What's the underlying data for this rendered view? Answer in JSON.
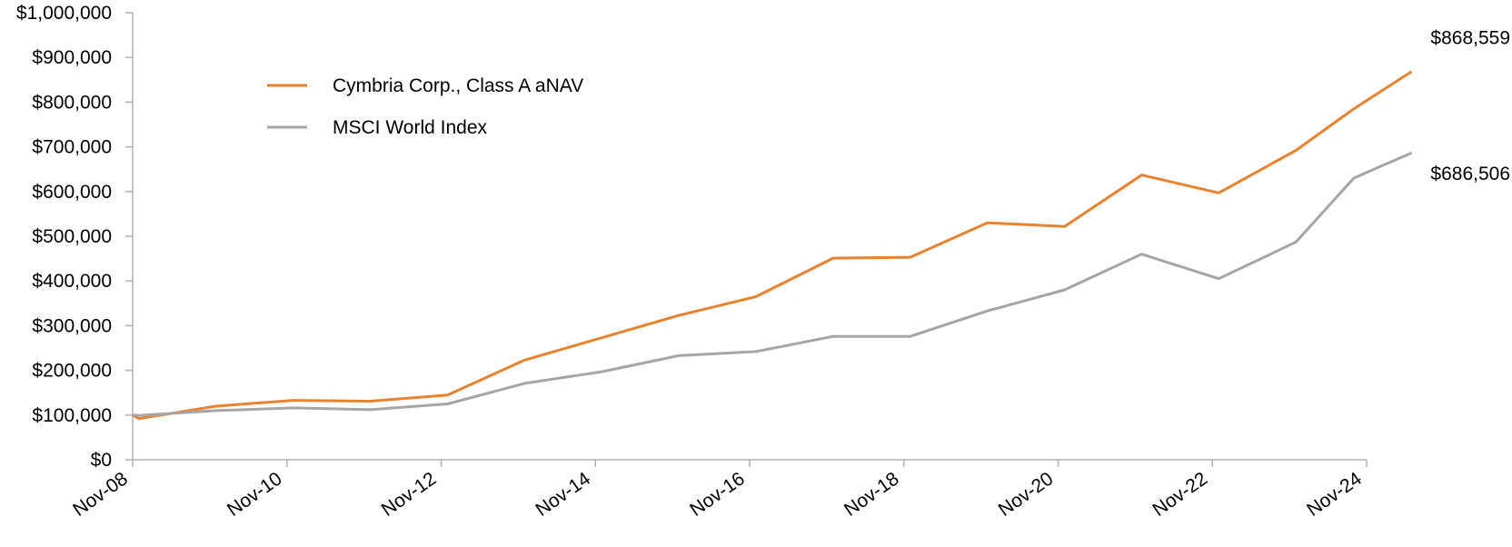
{
  "chart_data": {
    "type": "line",
    "title": "",
    "xlabel": "",
    "ylabel": "",
    "ylim": [
      0,
      1000000
    ],
    "xlim": [
      "Nov-08",
      "Nov-24"
    ],
    "grid": false,
    "legend_position": "top-left",
    "y_tick_labels": [
      "$0",
      "$100,000",
      "$200,000",
      "$300,000",
      "$400,000",
      "$500,000",
      "$600,000",
      "$700,000",
      "$800,000",
      "$900,000",
      "$1,000,000"
    ],
    "y_ticks": [
      0,
      100000,
      200000,
      300000,
      400000,
      500000,
      600000,
      700000,
      800000,
      900000,
      1000000
    ],
    "x_tick_labels": [
      "Nov-08",
      "Nov-10",
      "Nov-12",
      "Nov-14",
      "Nov-16",
      "Nov-18",
      "Nov-20",
      "Nov-22",
      "Nov-24"
    ],
    "x_ticks": [
      "2008-11",
      "2010-11",
      "2012-11",
      "2014-11",
      "2016-11",
      "2018-11",
      "2020-11",
      "2022-11",
      "2024-11"
    ],
    "series": [
      {
        "name": "Cymbria Corp., Class A aNAV",
        "color": "#e8822f",
        "end_label": "$868,559",
        "points": [
          {
            "x": "2008-11",
            "y": 100000
          },
          {
            "x": "2008-12",
            "y": 92000
          },
          {
            "x": "2009-12",
            "y": 120000
          },
          {
            "x": "2010-12",
            "y": 133000
          },
          {
            "x": "2011-12",
            "y": 131000
          },
          {
            "x": "2012-12",
            "y": 145000
          },
          {
            "x": "2013-12",
            "y": 223000
          },
          {
            "x": "2014-12",
            "y": 273000
          },
          {
            "x": "2015-12",
            "y": 323000
          },
          {
            "x": "2016-12",
            "y": 365000
          },
          {
            "x": "2017-12",
            "y": 451000
          },
          {
            "x": "2018-12",
            "y": 453000
          },
          {
            "x": "2019-12",
            "y": 530000
          },
          {
            "x": "2020-12",
            "y": 522000
          },
          {
            "x": "2021-12",
            "y": 637000
          },
          {
            "x": "2022-12",
            "y": 597000
          },
          {
            "x": "2023-12",
            "y": 692000
          },
          {
            "x": "2024-09",
            "y": 785000
          },
          {
            "x": "2025-06",
            "y": 868559
          }
        ]
      },
      {
        "name": "MSCI World Index",
        "color": "#a6a6a6",
        "end_label": "$686,506",
        "points": [
          {
            "x": "2008-11",
            "y": 100000
          },
          {
            "x": "2008-12",
            "y": 99000
          },
          {
            "x": "2009-12",
            "y": 110000
          },
          {
            "x": "2010-12",
            "y": 116000
          },
          {
            "x": "2011-12",
            "y": 112000
          },
          {
            "x": "2012-12",
            "y": 125000
          },
          {
            "x": "2013-12",
            "y": 171000
          },
          {
            "x": "2014-12",
            "y": 197000
          },
          {
            "x": "2015-12",
            "y": 233000
          },
          {
            "x": "2016-12",
            "y": 242000
          },
          {
            "x": "2017-12",
            "y": 276000
          },
          {
            "x": "2018-12",
            "y": 276000
          },
          {
            "x": "2019-12",
            "y": 333000
          },
          {
            "x": "2020-12",
            "y": 380000
          },
          {
            "x": "2021-12",
            "y": 460000
          },
          {
            "x": "2022-12",
            "y": 405000
          },
          {
            "x": "2023-12",
            "y": 487000
          },
          {
            "x": "2024-09",
            "y": 630000
          },
          {
            "x": "2025-06",
            "y": 686506
          }
        ]
      }
    ]
  }
}
